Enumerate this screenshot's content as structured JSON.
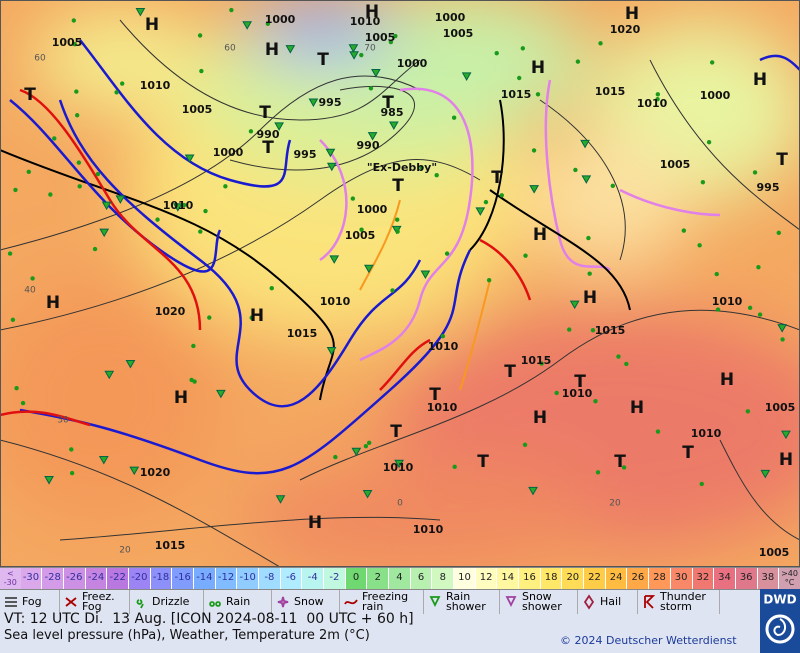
{
  "map": {
    "pressure_labels": [
      "1005",
      "1000",
      "1010",
      "1005",
      "1000",
      "1005",
      "1000",
      "1020",
      "1010",
      "1005",
      "995",
      "985",
      "990",
      "1000",
      "995",
      "990",
      "1015",
      "1015",
      "1010",
      "1000",
      "1005",
      "995",
      "1010",
      "1000",
      "1005",
      "1020",
      "1015",
      "1010",
      "1010",
      "1015",
      "1010",
      "1010",
      "1015",
      "1010",
      "1005",
      "1010",
      "1020",
      "1010",
      "1010",
      "1015",
      "1005"
    ],
    "grid_labels": [
      "60",
      "60",
      "70",
      "40",
      "30",
      "20",
      "0",
      "20"
    ],
    "high_label": "H",
    "low_label": "T",
    "storm_label": "\"Ex-Debby\""
  },
  "scale": {
    "below": [
      "<",
      "-30"
    ],
    "values": [
      -30,
      -28,
      -26,
      -24,
      -22,
      -20,
      -18,
      -16,
      -14,
      -12,
      -10,
      -8,
      -6,
      -4,
      -2,
      0,
      2,
      4,
      6,
      8,
      10,
      12,
      14,
      16,
      18,
      20,
      22,
      24,
      26,
      28,
      30,
      32,
      34,
      36,
      38
    ],
    "colors": [
      "#dca8ec",
      "#d49ce8",
      "#cc90e4",
      "#c484e0",
      "#b878e0",
      "#9c84f4",
      "#8c90f8",
      "#809cfc",
      "#78acff",
      "#80bcff",
      "#90ccff",
      "#a0dcff",
      "#b0ecff",
      "#b8f4f0",
      "#c0f8e0",
      "#70d870",
      "#88e088",
      "#a0e8a0",
      "#b8f0b0",
      "#d0f8c0",
      "#ffffe0",
      "#fffcc0",
      "#fff8a0",
      "#fff080",
      "#ffe868",
      "#ffdc58",
      "#ffcc48",
      "#ffbc40",
      "#ffa848",
      "#ff9858",
      "#f88868",
      "#f07870",
      "#e87080",
      "#e0788c",
      "#d8909c"
    ],
    "above": [
      ">40",
      "°C"
    ]
  },
  "legend": [
    "Fog",
    "Freez. Fog",
    "Drizzle",
    "Rain",
    "Snow",
    "Freezing rain",
    "Rain shower",
    "Snow shower",
    "Hail",
    "Thunder storm"
  ],
  "logo": "DWD",
  "footer": {
    "valid_time": "VT: 12 UTC Di.  13 Aug. [ICON 2024-08-11  00 UTC + 60 h]",
    "description": "Sea level pressure (hPa), Weather, Temperature 2m (°C)",
    "copyright": "© 2024 Deutscher Wetterdienst"
  }
}
